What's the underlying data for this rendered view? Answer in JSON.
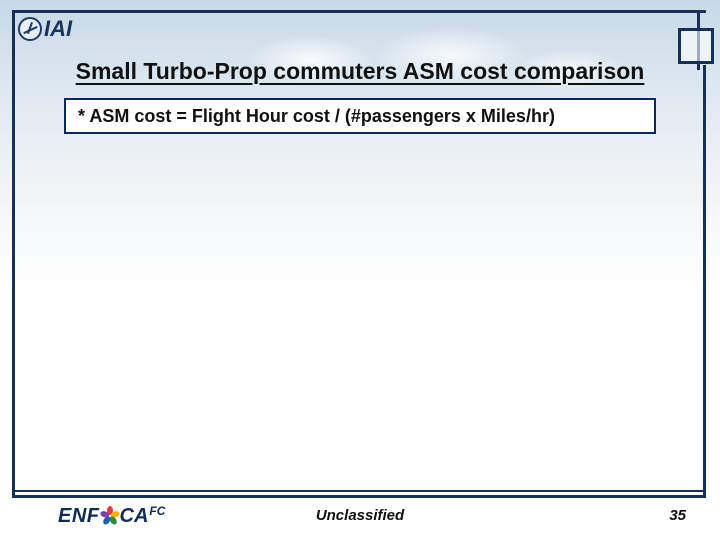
{
  "logo_top": {
    "text": "IAI"
  },
  "title": "Small Turbo-Prop commuters ASM cost comparison",
  "formula": "* ASM cost = Flight Hour cost / (#passengers x Miles/hr)",
  "logo_bottom": {
    "part1": "ENF",
    "part2": "CA",
    "superscript": "FC",
    "petal_colors": [
      "#e23b3b",
      "#f0b400",
      "#2e8b3d",
      "#1f5fb0",
      "#7a3fb0"
    ]
  },
  "classification": "Unclassified",
  "page_number": "35",
  "colors": {
    "frame": "#16305a",
    "title_text": "#111111",
    "formula_border": "#0b2a5b",
    "logo_text": "#132c55"
  }
}
